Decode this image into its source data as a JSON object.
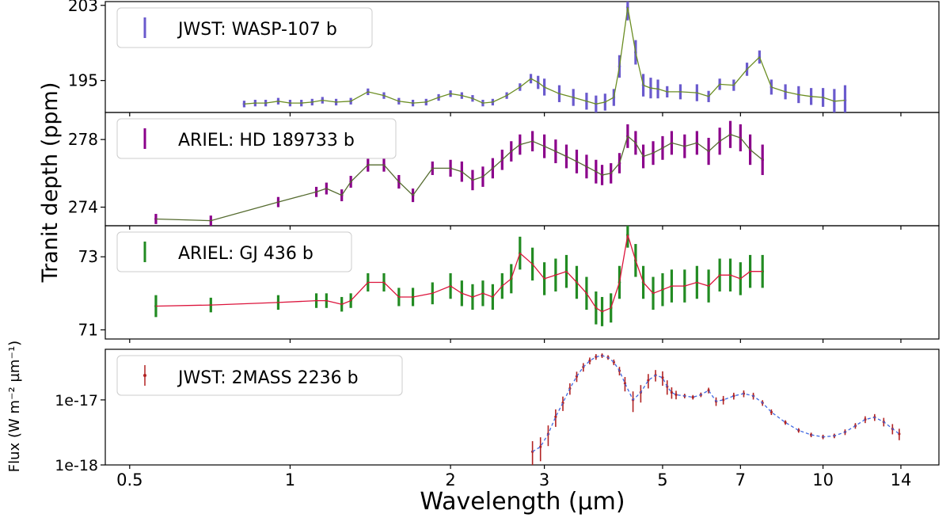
{
  "figure": {
    "shared_xlabel": "Wavelength (µm)",
    "shared_ylabel": "Tranit depth (ppm)",
    "x_scale": "log",
    "x_range": [
      0.45,
      16.5
    ],
    "x_ticks": [
      0.5,
      1,
      2,
      3,
      5,
      7,
      10,
      14
    ],
    "x_tick_labels": [
      "0.5",
      "1",
      "2",
      "3",
      "5",
      "7",
      "10",
      "14"
    ]
  },
  "chart_data": [
    {
      "type": "line",
      "panel": "wasp107",
      "legend": "JWST: WASP-107 b",
      "color": "#6a5acd",
      "model_color": "#6b8e23",
      "ylim": [
        191.6,
        203.4
      ],
      "y_ticks": [
        195,
        203
      ],
      "y_tick_labels": [
        "195",
        "203"
      ],
      "x": [
        0.82,
        0.86,
        0.9,
        0.95,
        1.0,
        1.05,
        1.1,
        1.15,
        1.22,
        1.3,
        1.4,
        1.5,
        1.6,
        1.7,
        1.8,
        1.9,
        2.0,
        2.1,
        2.2,
        2.3,
        2.4,
        2.55,
        2.7,
        2.83,
        2.92,
        3.0,
        3.2,
        3.4,
        3.6,
        3.75,
        3.9,
        4.05,
        4.15,
        4.3,
        4.45,
        4.6,
        4.75,
        4.9,
        5.1,
        5.4,
        5.8,
        6.1,
        6.4,
        6.8,
        7.2,
        7.6,
        8.0,
        8.5,
        9.0,
        9.5,
        10.0,
        10.5,
        11.0
      ],
      "y": [
        192.5,
        192.6,
        192.6,
        192.8,
        192.6,
        192.6,
        192.7,
        192.9,
        192.7,
        192.8,
        193.8,
        193.4,
        192.8,
        192.6,
        192.7,
        193.2,
        193.6,
        193.4,
        193.1,
        192.6,
        192.7,
        193.4,
        194.3,
        195.2,
        194.8,
        194.3,
        193.6,
        193.2,
        192.8,
        192.5,
        192.7,
        193.2,
        196.5,
        202.8,
        198.0,
        194.5,
        194.2,
        194.1,
        193.8,
        193.8,
        193.7,
        193.3,
        194.6,
        194.5,
        196.2,
        197.5,
        194.3,
        193.8,
        193.5,
        193.3,
        193.2,
        192.8,
        192.9
      ],
      "error": [
        0.35,
        0.35,
        0.35,
        0.35,
        0.35,
        0.35,
        0.35,
        0.35,
        0.35,
        0.35,
        0.35,
        0.35,
        0.35,
        0.35,
        0.35,
        0.35,
        0.35,
        0.35,
        0.35,
        0.35,
        0.35,
        0.35,
        0.4,
        0.5,
        0.7,
        0.9,
        0.9,
        0.9,
        0.9,
        0.9,
        0.9,
        0.9,
        1.2,
        1.4,
        1.3,
        1.2,
        1.1,
        1.0,
        0.6,
        0.8,
        0.9,
        0.6,
        0.6,
        0.6,
        0.7,
        0.7,
        0.8,
        0.8,
        0.9,
        0.9,
        1.0,
        1.3,
        1.6
      ]
    },
    {
      "type": "line",
      "panel": "hd189733",
      "legend": "ARIEL: HD 189733 b",
      "color": "#8b008b",
      "model_color": "#556b2f",
      "ylim": [
        272.9,
        279.6
      ],
      "y_ticks": [
        274,
        278
      ],
      "y_tick_labels": [
        "274",
        "278"
      ],
      "x": [
        0.56,
        0.71,
        0.95,
        1.12,
        1.17,
        1.25,
        1.3,
        1.4,
        1.5,
        1.6,
        1.7,
        1.85,
        2.0,
        2.1,
        2.2,
        2.3,
        2.4,
        2.5,
        2.6,
        2.7,
        2.85,
        3.0,
        3.15,
        3.3,
        3.45,
        3.6,
        3.75,
        3.85,
        4.0,
        4.15,
        4.3,
        4.45,
        4.6,
        4.8,
        5.0,
        5.2,
        5.5,
        5.8,
        6.1,
        6.4,
        6.7,
        7.0,
        7.3,
        7.7
      ],
      "y": [
        273.3,
        273.2,
        274.3,
        274.9,
        275.1,
        274.7,
        275.5,
        276.5,
        276.5,
        275.5,
        274.7,
        276.3,
        276.3,
        276.1,
        275.6,
        275.8,
        276.3,
        276.8,
        277.3,
        277.7,
        277.9,
        277.6,
        277.3,
        277.0,
        276.7,
        276.4,
        276.1,
        275.9,
        276.0,
        276.6,
        278.2,
        277.8,
        277.0,
        277.2,
        277.5,
        277.8,
        277.6,
        277.8,
        277.3,
        277.9,
        278.3,
        278.1,
        277.4,
        276.8
      ],
      "error": [
        0.3,
        0.3,
        0.3,
        0.3,
        0.35,
        0.35,
        0.35,
        0.4,
        0.4,
        0.4,
        0.4,
        0.4,
        0.5,
        0.6,
        0.6,
        0.6,
        0.6,
        0.6,
        0.6,
        0.6,
        0.6,
        0.7,
        0.7,
        0.7,
        0.7,
        0.7,
        0.7,
        0.6,
        0.6,
        0.6,
        0.7,
        0.7,
        0.7,
        0.7,
        0.7,
        0.7,
        0.7,
        0.7,
        0.8,
        0.8,
        0.8,
        0.8,
        0.9,
        0.9
      ]
    },
    {
      "type": "line",
      "panel": "gj436",
      "legend": "ARIEL: GJ 436 b",
      "color": "#228b22",
      "model_color": "#dc143c",
      "ylim": [
        70.75,
        73.85
      ],
      "y_ticks": [
        71,
        73
      ],
      "y_tick_labels": [
        "71",
        "73"
      ],
      "x": [
        0.56,
        0.71,
        0.95,
        1.12,
        1.17,
        1.25,
        1.3,
        1.4,
        1.5,
        1.6,
        1.7,
        1.85,
        2.0,
        2.1,
        2.2,
        2.3,
        2.4,
        2.5,
        2.6,
        2.7,
        2.85,
        3.0,
        3.15,
        3.3,
        3.45,
        3.6,
        3.75,
        3.85,
        4.0,
        4.15,
        4.3,
        4.45,
        4.6,
        4.8,
        5.0,
        5.2,
        5.5,
        5.8,
        6.1,
        6.4,
        6.7,
        7.0,
        7.3,
        7.7
      ],
      "y": [
        71.65,
        71.68,
        71.75,
        71.8,
        71.8,
        71.7,
        71.8,
        72.3,
        72.3,
        71.9,
        71.9,
        72.0,
        72.2,
        72.0,
        71.9,
        72.0,
        71.9,
        72.2,
        72.4,
        73.1,
        72.8,
        72.4,
        72.5,
        72.6,
        72.3,
        72.0,
        71.6,
        71.5,
        71.6,
        72.3,
        73.6,
        72.9,
        72.3,
        72.0,
        72.1,
        72.2,
        72.2,
        72.3,
        72.2,
        72.5,
        72.5,
        72.4,
        72.6,
        72.6
      ],
      "error": [
        0.3,
        0.2,
        0.2,
        0.2,
        0.2,
        0.2,
        0.2,
        0.25,
        0.25,
        0.25,
        0.25,
        0.3,
        0.35,
        0.35,
        0.35,
        0.35,
        0.35,
        0.35,
        0.4,
        0.45,
        0.45,
        0.45,
        0.45,
        0.45,
        0.45,
        0.45,
        0.45,
        0.4,
        0.4,
        0.45,
        0.35,
        0.45,
        0.45,
        0.45,
        0.45,
        0.45,
        0.45,
        0.45,
        0.45,
        0.45,
        0.45,
        0.45,
        0.45,
        0.45
      ]
    },
    {
      "type": "line",
      "panel": "2mass2236",
      "legend": "JWST: 2MASS 2236 b",
      "color": "#b22222",
      "model_color": "#4169e1",
      "y_scale": "log",
      "ylabel": "Flux (W m⁻² µm⁻¹)",
      "ylim": [
        1e-18,
        6e-17
      ],
      "y_ticks": [
        1e-17,
        1e-18
      ],
      "y_tick_labels": [
        "1e-17",
        "1e-18"
      ],
      "x": [
        2.85,
        2.95,
        3.05,
        3.15,
        3.25,
        3.35,
        3.45,
        3.55,
        3.65,
        3.75,
        3.85,
        3.95,
        4.05,
        4.15,
        4.25,
        4.4,
        4.55,
        4.7,
        4.85,
        5.0,
        5.1,
        5.2,
        5.3,
        5.5,
        5.7,
        5.9,
        6.1,
        6.3,
        6.5,
        6.8,
        7.1,
        7.4,
        7.7,
        8.0,
        8.5,
        9.0,
        9.5,
        10.0,
        10.5,
        11.0,
        11.5,
        12.0,
        12.5,
        13.0,
        13.5,
        13.9
      ],
      "y": [
        1.6e-18,
        1.9e-18,
        3e-18,
        5.5e-18,
        9e-18,
        1.5e-17,
        2.3e-17,
        3.2e-17,
        4e-17,
        4.6e-17,
        4.8e-17,
        4.5e-17,
        3.8e-17,
        2.8e-17,
        1.8e-17,
        1e-17,
        1.3e-17,
        2e-17,
        2.4e-17,
        2.2e-17,
        1.6e-17,
        1.3e-17,
        1.2e-17,
        1.15e-17,
        1.1e-17,
        1.2e-17,
        1.4e-17,
        9.5e-18,
        1e-17,
        1.15e-17,
        1.25e-17,
        1.15e-17,
        9e-18,
        6.5e-18,
        4.5e-18,
        3.4e-18,
        2.9e-18,
        2.7e-18,
        2.8e-18,
        3.2e-18,
        4e-18,
        5e-18,
        5.4e-18,
        4.6e-18,
        3.6e-18,
        3e-18
      ],
      "error_rel": [
        0.45,
        0.4,
        0.35,
        0.3,
        0.25,
        0.2,
        0.18,
        0.15,
        0.12,
        0.1,
        0.08,
        0.08,
        0.1,
        0.15,
        0.25,
        0.35,
        0.3,
        0.25,
        0.2,
        0.25,
        0.25,
        0.2,
        0.15,
        0.08,
        0.08,
        0.08,
        0.1,
        0.15,
        0.15,
        0.12,
        0.12,
        0.12,
        0.1,
        0.1,
        0.08,
        0.08,
        0.08,
        0.08,
        0.08,
        0.1,
        0.1,
        0.12,
        0.12,
        0.15,
        0.18,
        0.2
      ]
    }
  ]
}
